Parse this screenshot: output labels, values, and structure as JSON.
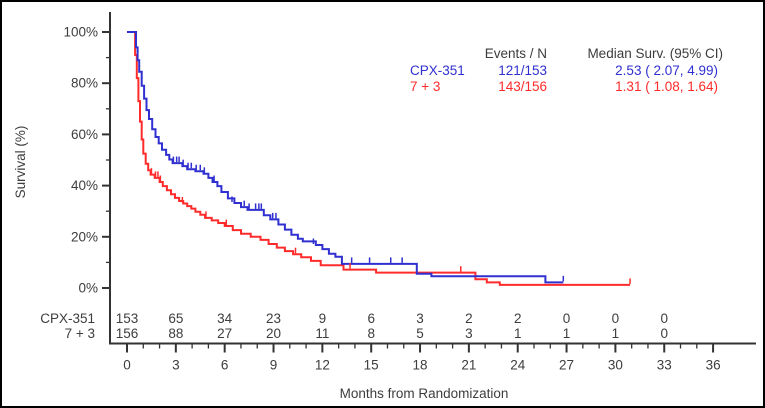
{
  "legend": {
    "events_header": "Events / N",
    "median_header": "Median Surv. (95% CI)",
    "rows": [
      {
        "name": "CPX-351",
        "events": "121/153",
        "median": "2.53 ( 2.07, 4.99)"
      },
      {
        "name": "7 + 3",
        "events": "143/156",
        "median": "1.31 ( 1.08, 1.64)"
      }
    ]
  },
  "at_risk": {
    "positions_months": [
      0,
      3,
      6,
      9,
      12,
      15,
      18,
      21,
      24,
      27,
      30,
      33
    ],
    "rows": [
      {
        "label": "CPX-351",
        "color": "#3030d0",
        "counts": [
          153,
          65,
          34,
          23,
          9,
          6,
          3,
          2,
          2,
          0,
          0,
          0
        ]
      },
      {
        "label": "7 + 3",
        "color": "#ff2b2b",
        "counts": [
          156,
          88,
          27,
          20,
          11,
          8,
          5,
          3,
          1,
          1,
          1,
          0
        ]
      }
    ]
  },
  "chart_data": {
    "type": "line",
    "subtype": "kaplan-meier-step",
    "title": "",
    "xlabel": "Months from Randomization",
    "ylabel": "Survival (%)",
    "xlim": [
      0,
      36
    ],
    "ylim": [
      0,
      100
    ],
    "x_major_ticks": [
      0,
      3,
      6,
      9,
      12,
      15,
      18,
      21,
      24,
      27,
      30,
      33,
      36
    ],
    "x_minor_tick_step": 1,
    "y_major_tick_values": [
      0,
      20,
      40,
      60,
      80,
      100
    ],
    "y_tick_labels": [
      "0%",
      "20%",
      "40%",
      "60%",
      "80%",
      "100%"
    ],
    "y_minor_tick_values": [
      10,
      30,
      50,
      70,
      90
    ],
    "grid": false,
    "legend_position": "top-right",
    "axis_color": "#333333",
    "series": [
      {
        "name": "CPX-351",
        "color": "#3030d0",
        "events_n": "121/153",
        "median_95ci": "2.53 ( 2.07, 4.99)",
        "steps_month_pct": [
          [
            0,
            100
          ],
          [
            0.45,
            100
          ],
          [
            0.55,
            94
          ],
          [
            0.65,
            89
          ],
          [
            0.75,
            84.5
          ],
          [
            0.9,
            79
          ],
          [
            1.05,
            74
          ],
          [
            1.2,
            69.5
          ],
          [
            1.35,
            66
          ],
          [
            1.55,
            62
          ],
          [
            1.75,
            59
          ],
          [
            1.95,
            56.5
          ],
          [
            2.15,
            54
          ],
          [
            2.4,
            52
          ],
          [
            2.6,
            50.2
          ],
          [
            2.8,
            48.8
          ],
          [
            3.4,
            47.6
          ],
          [
            3.7,
            46.4
          ],
          [
            4.2,
            45.6
          ],
          [
            4.7,
            44.6
          ],
          [
            5.0,
            43
          ],
          [
            5.25,
            41.4
          ],
          [
            5.55,
            39.8
          ],
          [
            5.8,
            37.5
          ],
          [
            6.2,
            35
          ],
          [
            6.6,
            33.2
          ],
          [
            7.0,
            31.6
          ],
          [
            7.4,
            30.5
          ],
          [
            8.4,
            28.4
          ],
          [
            8.8,
            26.8
          ],
          [
            9.3,
            24.8
          ],
          [
            9.7,
            22.8
          ],
          [
            10.1,
            20.8
          ],
          [
            10.5,
            19.2
          ],
          [
            10.8,
            18.2
          ],
          [
            11.6,
            16.8
          ],
          [
            12.0,
            15.2
          ],
          [
            12.4,
            13.4
          ],
          [
            12.8,
            12.2
          ],
          [
            13.2,
            9.4
          ],
          [
            17.8,
            5.6
          ],
          [
            18.7,
            4.6
          ],
          [
            25.7,
            2.2
          ],
          [
            26.8,
            2.2
          ]
        ],
        "censor_marks_month_pct": [
          [
            2.85,
            48.8
          ],
          [
            3.05,
            48.8
          ],
          [
            3.2,
            48.8
          ],
          [
            3.45,
            47.6
          ],
          [
            3.75,
            46.4
          ],
          [
            3.95,
            46.4
          ],
          [
            4.25,
            45.6
          ],
          [
            4.5,
            45.6
          ],
          [
            4.75,
            44.6
          ],
          [
            5.35,
            41.4
          ],
          [
            6.45,
            33.2
          ],
          [
            7.2,
            31.6
          ],
          [
            7.5,
            30.5
          ],
          [
            7.9,
            30.5
          ],
          [
            8.1,
            30.5
          ],
          [
            8.25,
            30.5
          ],
          [
            8.95,
            26.8
          ],
          [
            9.15,
            26.8
          ],
          [
            11.45,
            16.8
          ],
          [
            13.8,
            9.4
          ],
          [
            14.9,
            9.4
          ],
          [
            16.2,
            9.4
          ],
          [
            16.9,
            9.4
          ],
          [
            26.8,
            2.2
          ]
        ]
      },
      {
        "name": "7 + 3",
        "color": "#ff2b2b",
        "events_n": "143/156",
        "median_95ci": "1.31 ( 1.08, 1.64)",
        "steps_month_pct": [
          [
            0,
            100
          ],
          [
            0.4,
            100
          ],
          [
            0.5,
            91
          ],
          [
            0.6,
            82
          ],
          [
            0.7,
            73
          ],
          [
            0.8,
            65
          ],
          [
            0.9,
            58
          ],
          [
            1.0,
            52.5
          ],
          [
            1.15,
            48.5
          ],
          [
            1.3,
            46
          ],
          [
            1.45,
            44.3
          ],
          [
            1.7,
            43
          ],
          [
            2.0,
            41.4
          ],
          [
            2.2,
            39.8
          ],
          [
            2.45,
            38.2
          ],
          [
            2.7,
            36.6
          ],
          [
            2.95,
            35.2
          ],
          [
            3.2,
            34
          ],
          [
            3.45,
            33
          ],
          [
            3.7,
            32
          ],
          [
            3.95,
            31
          ],
          [
            4.2,
            29.8
          ],
          [
            4.5,
            28.6
          ],
          [
            4.8,
            27.4
          ],
          [
            5.2,
            26.4
          ],
          [
            5.6,
            25.4
          ],
          [
            6.0,
            24.2
          ],
          [
            6.5,
            22.6
          ],
          [
            7.0,
            21.2
          ],
          [
            7.6,
            20
          ],
          [
            8.2,
            18.8
          ],
          [
            8.7,
            17.2
          ],
          [
            9.2,
            15.8
          ],
          [
            9.7,
            14.4
          ],
          [
            10.2,
            13.2
          ],
          [
            10.7,
            12
          ],
          [
            11.3,
            10.6
          ],
          [
            11.9,
            8.9
          ],
          [
            13.3,
            7.2
          ],
          [
            15.3,
            6.0
          ],
          [
            21.4,
            3.4
          ],
          [
            22.1,
            2.2
          ],
          [
            22.9,
            1.2
          ],
          [
            30.9,
            1.2
          ]
        ],
        "censor_marks_month_pct": [
          [
            1.5,
            44.3
          ],
          [
            1.75,
            43
          ],
          [
            1.9,
            43
          ],
          [
            2.05,
            41.4
          ],
          [
            3.4,
            33
          ],
          [
            4.85,
            27.4
          ],
          [
            6.1,
            24.2
          ],
          [
            10.35,
            13.2
          ],
          [
            13.7,
            7.2
          ],
          [
            20.5,
            6.0
          ],
          [
            30.9,
            1.2
          ]
        ]
      }
    ]
  }
}
